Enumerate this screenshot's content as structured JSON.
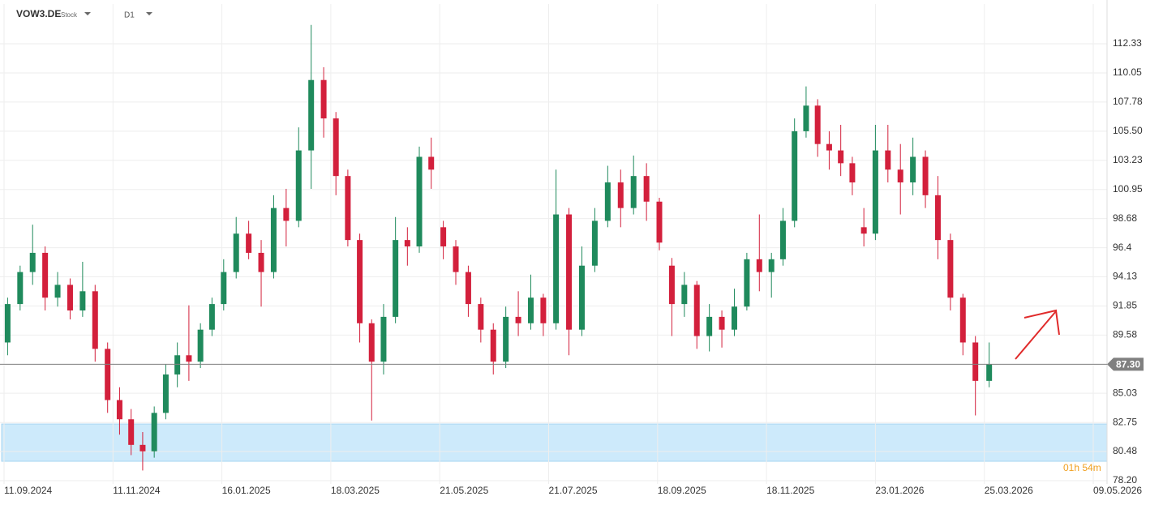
{
  "chart_data": {
    "type": "candlestick",
    "title": "VOW3.DE",
    "subtitle": "Stock",
    "timeframe": "D1",
    "countdown": "01h 54m",
    "up_color": "#1f8a5c",
    "down_color": "#d3203c",
    "grid": true,
    "ylim": [
      77.95,
      114.8
    ],
    "yticks": [
      {
        "value": 78.2,
        "label": "78.20"
      },
      80.48,
      82.75,
      85.03,
      87.3,
      89.58,
      91.85,
      94.13,
      96.4,
      98.68,
      100.95,
      103.23,
      {
        "value": 105.5,
        "label": "105.50"
      },
      107.78,
      110.05,
      112.33
    ],
    "xticks": [
      "11.09.2024",
      "11.11.2024",
      "16.01.2025",
      "18.03.2025",
      "21.05.2025",
      "21.07.2025",
      "18.09.2025",
      "18.11.2025",
      "23.01.2026",
      "25.03.2026",
      "09.05.2026"
    ],
    "current_price": {
      "value": 87.3,
      "label": "87.30",
      "color": "#808080"
    },
    "zone": {
      "range": [
        79.72,
        82.63
      ],
      "color": "#cdeafb"
    },
    "candles": {
      "x": [
        "13.09.2024",
        "20.09.2024",
        "27.09.2024",
        "04.10.2024",
        "11.10.2024",
        "18.10.2024",
        "25.10.2024",
        "01.11.2024",
        "08.11.2024",
        "15.11.2024",
        "22.11.2024",
        "29.11.2024",
        "06.12.2024",
        "13.12.2024",
        "20.12.2024",
        "27.12.2024",
        "03.01.2025",
        "10.01.2025",
        "17.01.2025",
        "24.01.2025",
        "31.01.2025",
        "07.02.2025",
        "14.02.2025",
        "21.02.2025",
        "28.02.2025",
        "07.03.2025",
        "14.03.2025",
        "21.03.2025",
        "28.03.2025",
        "04.04.2025",
        "11.04.2025",
        "18.04.2025",
        "25.04.2025",
        "02.05.2025",
        "09.05.2025",
        "16.05.2025",
        "23.05.2025",
        "30.05.2025",
        "06.06.2025",
        "13.06.2025",
        "20.06.2025",
        "27.06.2025",
        "04.07.2025",
        "11.07.2025",
        "18.07.2025",
        "25.07.2025",
        "01.08.2025",
        "08.08.2025",
        "15.08.2025",
        "22.08.2025",
        "29.08.2025",
        "05.09.2025",
        "12.09.2025",
        "19.09.2025",
        "26.09.2025",
        "03.10.2025",
        "10.10.2025",
        "17.10.2025",
        "24.10.2025",
        "31.10.2025",
        "07.11.2025",
        "14.11.2025",
        "21.11.2025",
        "28.11.2025",
        "05.12.2025",
        "12.12.2025",
        "19.12.2025",
        "26.12.2025",
        "02.01.2026",
        "09.01.2026",
        "16.01.2026",
        "23.01.2026",
        "30.01.2026",
        "06.02.2026",
        "13.02.2026",
        "20.02.2026",
        "27.02.2026",
        "06.03.2026",
        "13.03.2026",
        "20.03.2026",
        "27.03.2026"
      ],
      "open": [
        89,
        92,
        94.5,
        96,
        92.5,
        93.5,
        91.5,
        93,
        88.5,
        84.5,
        83,
        81,
        80.5,
        83.5,
        86.5,
        88,
        87.5,
        90,
        92,
        94.5,
        97.5,
        96,
        94.5,
        99.5,
        98.5,
        104,
        109.5,
        106.5,
        102,
        97,
        90.5,
        87.5,
        91,
        97,
        96.5,
        103.5,
        98,
        96.5,
        94.5,
        92,
        90,
        87.5,
        91,
        90.5,
        92.5,
        90.5,
        99,
        90,
        95,
        98.5,
        101.5,
        99.5,
        102,
        100,
        95,
        92,
        93.5,
        89.5,
        91,
        90,
        91.8,
        95.5,
        94.5,
        95.5,
        98.5,
        105.5,
        107.5,
        104.5,
        104,
        103,
        98,
        97.5,
        104,
        102.5,
        101.5,
        103.5,
        100.5,
        97,
        92.5,
        89,
        86
      ],
      "high": [
        92.5,
        95,
        98.2,
        96.5,
        94.5,
        94,
        95.3,
        93.5,
        89,
        85.5,
        83.8,
        82,
        84,
        87.3,
        89,
        91.9,
        90.5,
        92.5,
        95.5,
        98.8,
        98.5,
        97,
        100.5,
        101,
        105.8,
        113.8,
        110.5,
        107,
        102.5,
        97.5,
        90.8,
        92,
        98.8,
        98,
        104.3,
        105,
        98.5,
        97,
        95,
        92.5,
        90.5,
        91.8,
        93,
        94.3,
        92.8,
        102.5,
        99.5,
        96.5,
        99.5,
        102.8,
        102.5,
        103.6,
        103,
        100.3,
        95.6,
        94.5,
        93.8,
        92,
        91.5,
        93.2,
        96,
        99,
        96,
        99.5,
        106.5,
        109,
        108,
        105.5,
        106,
        103.5,
        99.5,
        106,
        106,
        104.5,
        105,
        104,
        102,
        97.5,
        92.8,
        89.5,
        89
      ],
      "low": [
        88,
        91.5,
        93.5,
        91.5,
        91.8,
        90.8,
        91,
        87.5,
        83.5,
        81.8,
        80.2,
        79,
        80,
        83,
        85.5,
        86,
        87,
        89.5,
        91.5,
        94,
        95.5,
        91.8,
        94,
        96.5,
        98,
        101,
        105,
        100.5,
        96.5,
        89,
        82.9,
        86.5,
        90.5,
        95,
        96,
        101,
        95.5,
        93.5,
        91,
        89,
        86.5,
        87,
        89.5,
        90,
        89.5,
        90,
        88,
        89.5,
        94.5,
        98,
        98,
        99,
        98.5,
        96.2,
        89.5,
        91,
        88.5,
        88.3,
        88.6,
        89.5,
        91.5,
        93,
        92.5,
        95,
        98,
        105,
        103.5,
        102.5,
        102,
        100.5,
        96.5,
        97,
        101.5,
        99,
        100.5,
        99.5,
        95.5,
        91.5,
        88,
        83.3,
        85.5
      ],
      "close": [
        92,
        94.5,
        96,
        92.5,
        93.5,
        91.5,
        93,
        88.5,
        84.5,
        83,
        81,
        80.5,
        83.5,
        86.5,
        88,
        87.5,
        90,
        92,
        94.5,
        97.5,
        96,
        94.5,
        99.5,
        98.5,
        104,
        109.5,
        106.5,
        102,
        97,
        90.5,
        87.5,
        91,
        97,
        96.5,
        103.5,
        102.5,
        96.5,
        94.5,
        92,
        90,
        87.5,
        91,
        90.5,
        92.5,
        90.5,
        99,
        90,
        95,
        98.5,
        101.5,
        99.5,
        102,
        100,
        96.8,
        92,
        93.5,
        89.5,
        91,
        90,
        91.8,
        95.5,
        94.5,
        95.5,
        98.5,
        105.5,
        107.5,
        104.5,
        104,
        103,
        101.5,
        97.5,
        104,
        102.5,
        101.5,
        103.5,
        100.5,
        97,
        92.5,
        89,
        86,
        87.3
      ]
    }
  }
}
